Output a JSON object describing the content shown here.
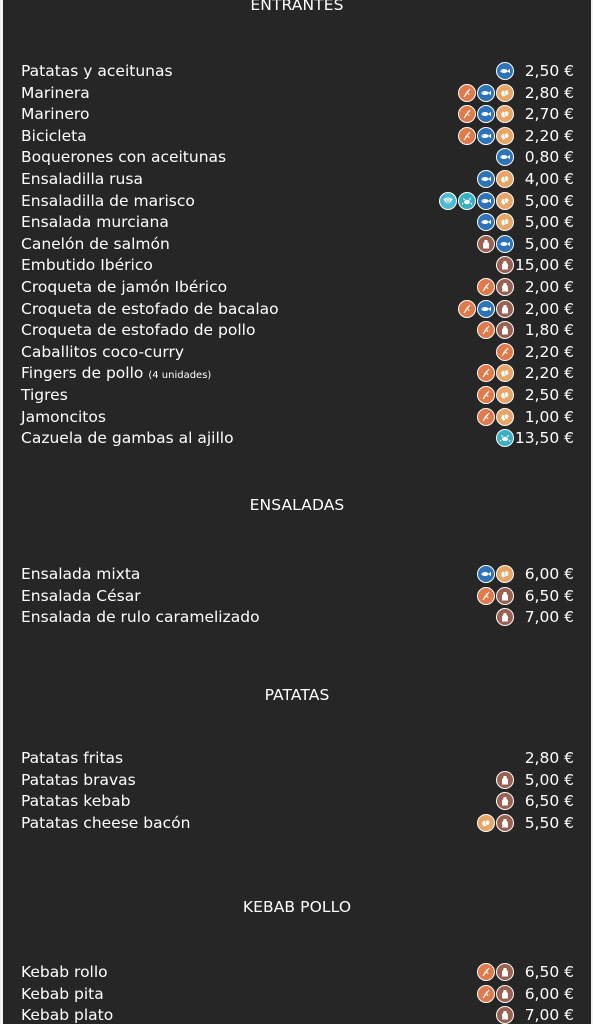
{
  "colors": {
    "background": "#262626",
    "text": "#ffffff",
    "gluten_icon": "#e07a4a",
    "fish_icon": "#2d73b8",
    "egg_icon": "#e8a565",
    "milk_icon": "#9a6050",
    "shellfish_icon": "#38b0c4",
    "mollusc_icon": "#4cbad0"
  },
  "icon_legend": {
    "gluten": "wheat-icon",
    "fish": "fish-icon",
    "egg": "egg-icon",
    "milk": "milk-jug-icon",
    "shellfish": "crab-icon",
    "mollusc": "shell-icon"
  },
  "sections": [
    {
      "title": "ENTRANTES",
      "items": [
        {
          "name": "Patatas y aceitunas",
          "note": "",
          "icons": [
            "fish"
          ],
          "price": "2,50 €"
        },
        {
          "name": "Marinera",
          "note": "",
          "icons": [
            "gluten",
            "fish",
            "egg"
          ],
          "price": "2,80 €"
        },
        {
          "name": "Marinero",
          "note": "",
          "icons": [
            "gluten",
            "fish",
            "egg"
          ],
          "price": "2,70 €"
        },
        {
          "name": "Bicicleta",
          "note": "",
          "icons": [
            "gluten",
            "fish",
            "egg"
          ],
          "price": "2,20 €"
        },
        {
          "name": "Boquerones con aceitunas",
          "note": "",
          "icons": [
            "fish"
          ],
          "price": "0,80 €"
        },
        {
          "name": "Ensaladilla rusa",
          "note": "",
          "icons": [
            "fish",
            "egg"
          ],
          "price": "4,00 €"
        },
        {
          "name": "Ensaladilla de marisco",
          "note": "",
          "icons": [
            "mollusc",
            "shellfish",
            "fish",
            "egg"
          ],
          "price": "5,00 €"
        },
        {
          "name": "Ensalada murciana",
          "note": "",
          "icons": [
            "fish",
            "egg"
          ],
          "price": "5,00 €"
        },
        {
          "name": "Canelón de salmón",
          "note": "",
          "icons": [
            "milk",
            "fish"
          ],
          "price": "5,00 €"
        },
        {
          "name": "Embutido Ibérico",
          "note": "",
          "icons": [
            "milk"
          ],
          "price": "15,00 €"
        },
        {
          "name": "Croqueta de jamón Ibérico",
          "note": "",
          "icons": [
            "gluten",
            "milk"
          ],
          "price": "2,00 €"
        },
        {
          "name": "Croqueta de estofado de bacalao",
          "note": "",
          "icons": [
            "gluten",
            "fish",
            "milk"
          ],
          "price": "2,00 €"
        },
        {
          "name": "Croqueta de estofado de pollo",
          "note": "",
          "icons": [
            "gluten",
            "milk"
          ],
          "price": "1,80 €"
        },
        {
          "name": "Caballitos coco-curry",
          "note": "",
          "icons": [
            "gluten"
          ],
          "price": "2,20 €"
        },
        {
          "name": "Fingers de pollo",
          "note": "(4 unidades)",
          "icons": [
            "gluten",
            "egg"
          ],
          "price": "2,20 €"
        },
        {
          "name": "Tigres",
          "note": "",
          "icons": [
            "gluten",
            "egg"
          ],
          "price": "2,50 €"
        },
        {
          "name": "Jamoncitos",
          "note": "",
          "icons": [
            "gluten",
            "egg"
          ],
          "price": "1,00 €"
        },
        {
          "name": "Cazuela de gambas al ajillo",
          "note": "",
          "icons": [
            "shellfish"
          ],
          "price": "13,50 €"
        }
      ]
    },
    {
      "title": "ENSALADAS",
      "items": [
        {
          "name": "Ensalada mixta",
          "note": "",
          "icons": [
            "fish",
            "egg"
          ],
          "price": "6,00 €"
        },
        {
          "name": "Ensalada César",
          "note": "",
          "icons": [
            "gluten",
            "milk"
          ],
          "price": "6,50 €"
        },
        {
          "name": "Ensalada de rulo caramelizado",
          "note": "",
          "icons": [
            "milk"
          ],
          "price": "7,00 €"
        }
      ]
    },
    {
      "title": "PATATAS",
      "items": [
        {
          "name": "Patatas fritas",
          "note": "",
          "icons": [],
          "price": "2,80 €"
        },
        {
          "name": "Patatas bravas",
          "note": "",
          "icons": [
            "milk"
          ],
          "price": "5,00 €"
        },
        {
          "name": "Patatas kebab",
          "note": "",
          "icons": [
            "milk"
          ],
          "price": "6,50 €"
        },
        {
          "name": "Patatas cheese bacón",
          "note": "",
          "icons": [
            "egg",
            "milk"
          ],
          "price": "5,50 €"
        }
      ]
    },
    {
      "title": "KEBAB POLLO",
      "items": [
        {
          "name": "Kebab rollo",
          "note": "",
          "icons": [
            "gluten",
            "milk"
          ],
          "price": "6,50 €"
        },
        {
          "name": "Kebab pita",
          "note": "",
          "icons": [
            "gluten",
            "milk"
          ],
          "price": "6,00 €"
        },
        {
          "name": "Kebab plato",
          "note": "",
          "icons": [
            "milk"
          ],
          "price": "7,00 €"
        }
      ]
    }
  ]
}
